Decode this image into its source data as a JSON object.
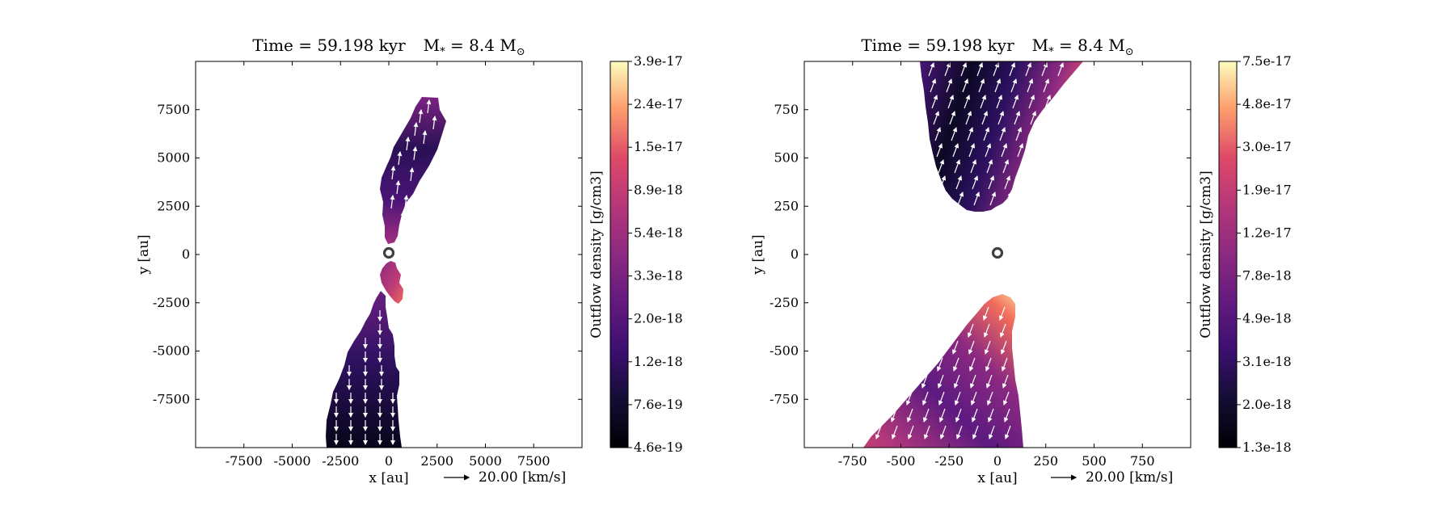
{
  "chart_data": [
    {
      "type": "heatmap",
      "title_time": "Time = 59.198 kyr",
      "title_mass": "M",
      "title_mass_sub": "*",
      "title_mass_val": " = 8.4 M",
      "title_mass_sun": "⊙",
      "xlabel": "x [au]",
      "ylabel": "y [au]",
      "xlim": [
        -10000,
        10000
      ],
      "ylim": [
        -10000,
        10000
      ],
      "xticks": [
        -7500,
        -5000,
        -2500,
        0,
        2500,
        5000,
        7500
      ],
      "xtick_labels": [
        "-7500",
        "-5000",
        "-2500",
        "0",
        "2500",
        "5000",
        "7500"
      ],
      "yticks": [
        7500,
        5000,
        2500,
        0,
        -2500,
        -5000,
        -7500
      ],
      "ytick_labels": [
        "7500",
        "5000",
        "2500",
        "0",
        "-2500",
        "-5000",
        "-7500"
      ],
      "quiver_key": "20.00 [km/s]",
      "colorbar_label": "Outflow density [g/cm3]",
      "colorbar_ticks": [
        "3.9e-17",
        "2.4e-17",
        "1.5e-17",
        "8.9e-18",
        "5.4e-18",
        "3.3e-18",
        "2.0e-18",
        "1.2e-18",
        "7.6e-19",
        "4.6e-19"
      ],
      "colorbar_range": [
        4.6e-19,
        3.9e-17
      ],
      "colorbar_scale": "log",
      "colormap": "magma",
      "star_position": [
        0,
        0
      ]
    },
    {
      "type": "heatmap",
      "title_time": "Time = 59.198 kyr",
      "title_mass": "M",
      "title_mass_sub": "*",
      "title_mass_val": " = 8.4 M",
      "title_mass_sun": "⊙",
      "xlabel": "x [au]",
      "ylabel": "y [au]",
      "xlim": [
        -1000,
        1000
      ],
      "ylim": [
        -1000,
        1000
      ],
      "xticks": [
        -750,
        -500,
        -250,
        0,
        250,
        500,
        750
      ],
      "xtick_labels": [
        "-750",
        "-500",
        "-250",
        "0",
        "250",
        "500",
        "750"
      ],
      "yticks": [
        750,
        500,
        250,
        0,
        -250,
        -500,
        -750
      ],
      "ytick_labels": [
        "750",
        "500",
        "250",
        "0",
        "-250",
        "-500",
        "-750"
      ],
      "quiver_key": "20.00 [km/s]",
      "colorbar_label": "Outflow density [g/cm3]",
      "colorbar_ticks": [
        "7.5e-17",
        "4.8e-17",
        "3.0e-17",
        "1.9e-17",
        "1.2e-17",
        "7.8e-18",
        "4.9e-18",
        "3.1e-18",
        "2.0e-18",
        "1.3e-18"
      ],
      "colorbar_range": [
        1.3e-18,
        7.5e-17
      ],
      "colorbar_scale": "log",
      "colormap": "magma",
      "star_position": [
        0,
        0
      ]
    }
  ]
}
